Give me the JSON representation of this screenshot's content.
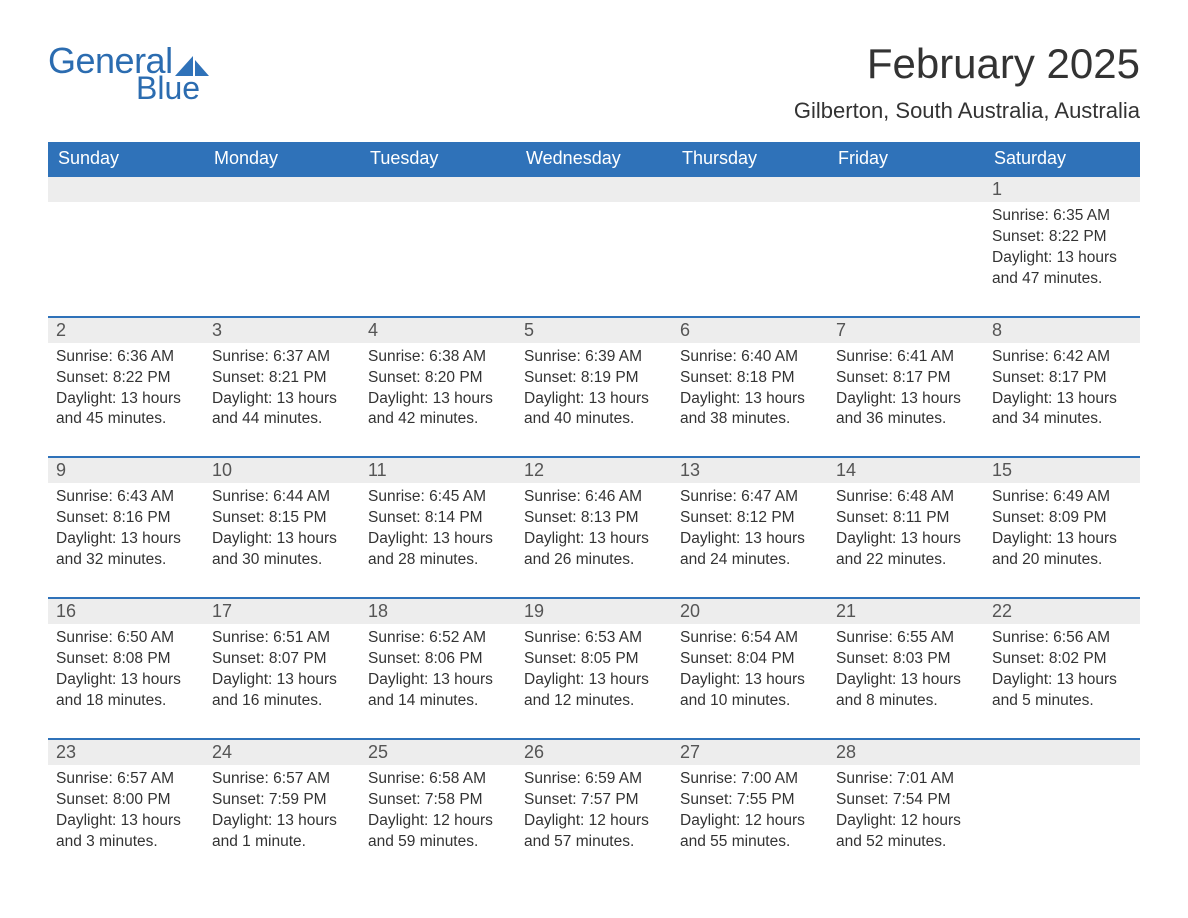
{
  "logo": {
    "word1": "General",
    "word2": "Blue",
    "sail_color": "#2f72b9",
    "text_color": "#2b6cb0"
  },
  "title": "February 2025",
  "location": "Gilberton, South Australia, Australia",
  "colors": {
    "header_bg": "#2f72b9",
    "header_text": "#ffffff",
    "daynum_bg": "#ededed",
    "body_text": "#333333",
    "rule": "#2f72b9"
  },
  "fonts": {
    "title_size": 42,
    "location_size": 22,
    "header_size": 18,
    "daynum_size": 18,
    "body_size": 15.5
  },
  "weekdays": [
    "Sunday",
    "Monday",
    "Tuesday",
    "Wednesday",
    "Thursday",
    "Friday",
    "Saturday"
  ],
  "weeks": [
    [
      {
        "n": "",
        "sunrise": "",
        "sunset": "",
        "daylight": ""
      },
      {
        "n": "",
        "sunrise": "",
        "sunset": "",
        "daylight": ""
      },
      {
        "n": "",
        "sunrise": "",
        "sunset": "",
        "daylight": ""
      },
      {
        "n": "",
        "sunrise": "",
        "sunset": "",
        "daylight": ""
      },
      {
        "n": "",
        "sunrise": "",
        "sunset": "",
        "daylight": ""
      },
      {
        "n": "",
        "sunrise": "",
        "sunset": "",
        "daylight": ""
      },
      {
        "n": "1",
        "sunrise": "Sunrise: 6:35 AM",
        "sunset": "Sunset: 8:22 PM",
        "daylight": "Daylight: 13 hours and 47 minutes."
      }
    ],
    [
      {
        "n": "2",
        "sunrise": "Sunrise: 6:36 AM",
        "sunset": "Sunset: 8:22 PM",
        "daylight": "Daylight: 13 hours and 45 minutes."
      },
      {
        "n": "3",
        "sunrise": "Sunrise: 6:37 AM",
        "sunset": "Sunset: 8:21 PM",
        "daylight": "Daylight: 13 hours and 44 minutes."
      },
      {
        "n": "4",
        "sunrise": "Sunrise: 6:38 AM",
        "sunset": "Sunset: 8:20 PM",
        "daylight": "Daylight: 13 hours and 42 minutes."
      },
      {
        "n": "5",
        "sunrise": "Sunrise: 6:39 AM",
        "sunset": "Sunset: 8:19 PM",
        "daylight": "Daylight: 13 hours and 40 minutes."
      },
      {
        "n": "6",
        "sunrise": "Sunrise: 6:40 AM",
        "sunset": "Sunset: 8:18 PM",
        "daylight": "Daylight: 13 hours and 38 minutes."
      },
      {
        "n": "7",
        "sunrise": "Sunrise: 6:41 AM",
        "sunset": "Sunset: 8:17 PM",
        "daylight": "Daylight: 13 hours and 36 minutes."
      },
      {
        "n": "8",
        "sunrise": "Sunrise: 6:42 AM",
        "sunset": "Sunset: 8:17 PM",
        "daylight": "Daylight: 13 hours and 34 minutes."
      }
    ],
    [
      {
        "n": "9",
        "sunrise": "Sunrise: 6:43 AM",
        "sunset": "Sunset: 8:16 PM",
        "daylight": "Daylight: 13 hours and 32 minutes."
      },
      {
        "n": "10",
        "sunrise": "Sunrise: 6:44 AM",
        "sunset": "Sunset: 8:15 PM",
        "daylight": "Daylight: 13 hours and 30 minutes."
      },
      {
        "n": "11",
        "sunrise": "Sunrise: 6:45 AM",
        "sunset": "Sunset: 8:14 PM",
        "daylight": "Daylight: 13 hours and 28 minutes."
      },
      {
        "n": "12",
        "sunrise": "Sunrise: 6:46 AM",
        "sunset": "Sunset: 8:13 PM",
        "daylight": "Daylight: 13 hours and 26 minutes."
      },
      {
        "n": "13",
        "sunrise": "Sunrise: 6:47 AM",
        "sunset": "Sunset: 8:12 PM",
        "daylight": "Daylight: 13 hours and 24 minutes."
      },
      {
        "n": "14",
        "sunrise": "Sunrise: 6:48 AM",
        "sunset": "Sunset: 8:11 PM",
        "daylight": "Daylight: 13 hours and 22 minutes."
      },
      {
        "n": "15",
        "sunrise": "Sunrise: 6:49 AM",
        "sunset": "Sunset: 8:09 PM",
        "daylight": "Daylight: 13 hours and 20 minutes."
      }
    ],
    [
      {
        "n": "16",
        "sunrise": "Sunrise: 6:50 AM",
        "sunset": "Sunset: 8:08 PM",
        "daylight": "Daylight: 13 hours and 18 minutes."
      },
      {
        "n": "17",
        "sunrise": "Sunrise: 6:51 AM",
        "sunset": "Sunset: 8:07 PM",
        "daylight": "Daylight: 13 hours and 16 minutes."
      },
      {
        "n": "18",
        "sunrise": "Sunrise: 6:52 AM",
        "sunset": "Sunset: 8:06 PM",
        "daylight": "Daylight: 13 hours and 14 minutes."
      },
      {
        "n": "19",
        "sunrise": "Sunrise: 6:53 AM",
        "sunset": "Sunset: 8:05 PM",
        "daylight": "Daylight: 13 hours and 12 minutes."
      },
      {
        "n": "20",
        "sunrise": "Sunrise: 6:54 AM",
        "sunset": "Sunset: 8:04 PM",
        "daylight": "Daylight: 13 hours and 10 minutes."
      },
      {
        "n": "21",
        "sunrise": "Sunrise: 6:55 AM",
        "sunset": "Sunset: 8:03 PM",
        "daylight": "Daylight: 13 hours and 8 minutes."
      },
      {
        "n": "22",
        "sunrise": "Sunrise: 6:56 AM",
        "sunset": "Sunset: 8:02 PM",
        "daylight": "Daylight: 13 hours and 5 minutes."
      }
    ],
    [
      {
        "n": "23",
        "sunrise": "Sunrise: 6:57 AM",
        "sunset": "Sunset: 8:00 PM",
        "daylight": "Daylight: 13 hours and 3 minutes."
      },
      {
        "n": "24",
        "sunrise": "Sunrise: 6:57 AM",
        "sunset": "Sunset: 7:59 PM",
        "daylight": "Daylight: 13 hours and 1 minute."
      },
      {
        "n": "25",
        "sunrise": "Sunrise: 6:58 AM",
        "sunset": "Sunset: 7:58 PM",
        "daylight": "Daylight: 12 hours and 59 minutes."
      },
      {
        "n": "26",
        "sunrise": "Sunrise: 6:59 AM",
        "sunset": "Sunset: 7:57 PM",
        "daylight": "Daylight: 12 hours and 57 minutes."
      },
      {
        "n": "27",
        "sunrise": "Sunrise: 7:00 AM",
        "sunset": "Sunset: 7:55 PM",
        "daylight": "Daylight: 12 hours and 55 minutes."
      },
      {
        "n": "28",
        "sunrise": "Sunrise: 7:01 AM",
        "sunset": "Sunset: 7:54 PM",
        "daylight": "Daylight: 12 hours and 52 minutes."
      },
      {
        "n": "",
        "sunrise": "",
        "sunset": "",
        "daylight": ""
      }
    ]
  ]
}
